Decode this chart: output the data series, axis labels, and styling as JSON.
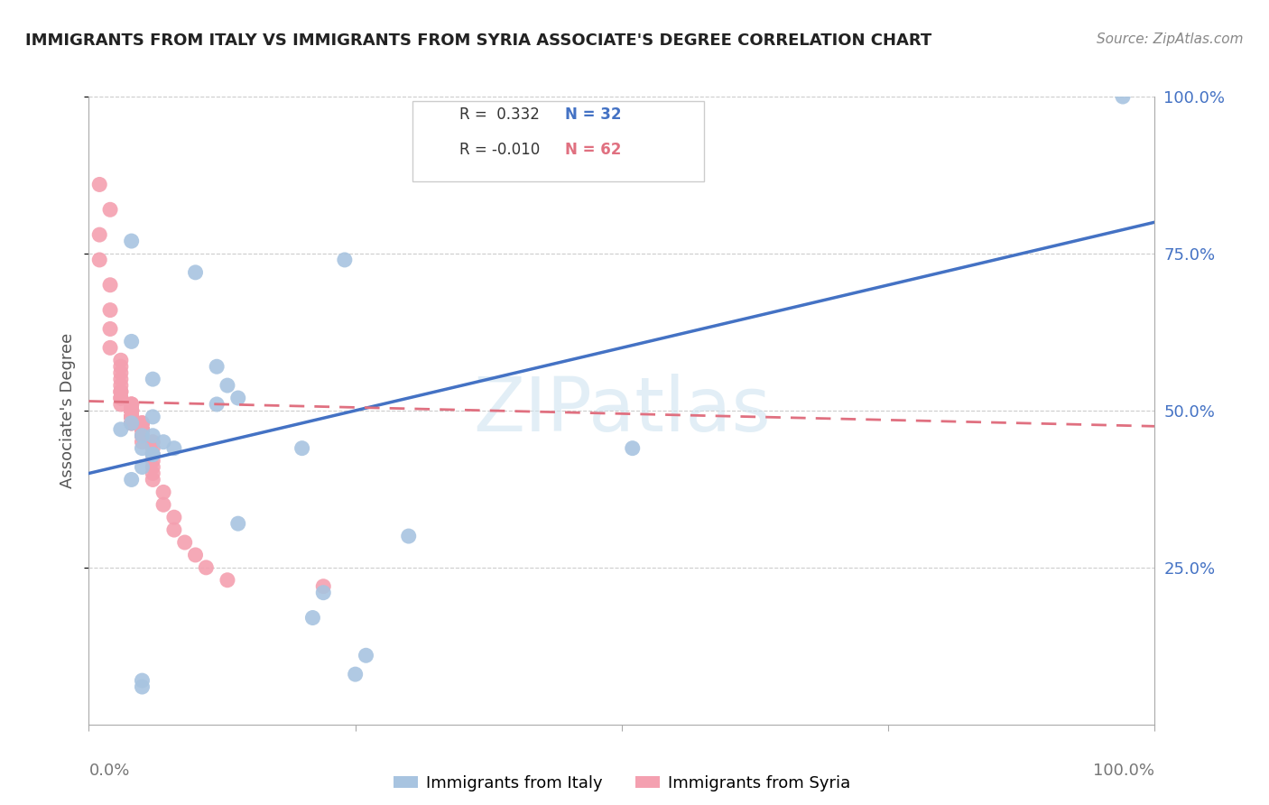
{
  "title": "IMMIGRANTS FROM ITALY VS IMMIGRANTS FROM SYRIA ASSOCIATE'S DEGREE CORRELATION CHART",
  "source": "Source: ZipAtlas.com",
  "ylabel": "Associate's Degree",
  "ytick_labels": [
    "100.0%",
    "75.0%",
    "50.0%",
    "25.0%"
  ],
  "ytick_values": [
    1.0,
    0.75,
    0.5,
    0.25
  ],
  "italy_r": 0.332,
  "italy_n": 32,
  "syria_r": -0.01,
  "syria_n": 62,
  "italy_color": "#a8c4e0",
  "syria_color": "#f4a0b0",
  "italy_line_color": "#4472C4",
  "syria_line_color": "#e07080",
  "watermark": "ZIPatlas",
  "background_color": "#ffffff",
  "xlim": [
    0,
    1
  ],
  "ylim": [
    0,
    1
  ],
  "italy_scatter_x": [
    0.04,
    0.1,
    0.24,
    0.04,
    0.12,
    0.06,
    0.13,
    0.14,
    0.06,
    0.04,
    0.03,
    0.05,
    0.06,
    0.07,
    0.05,
    0.08,
    0.06,
    0.05,
    0.04,
    0.12,
    0.2,
    0.51,
    0.14,
    0.21,
    0.22,
    0.26,
    0.25,
    0.3,
    0.97,
    0.06,
    0.05,
    0.05
  ],
  "italy_scatter_y": [
    0.77,
    0.72,
    0.74,
    0.61,
    0.57,
    0.55,
    0.54,
    0.52,
    0.49,
    0.48,
    0.47,
    0.46,
    0.46,
    0.45,
    0.44,
    0.44,
    0.43,
    0.41,
    0.39,
    0.51,
    0.44,
    0.44,
    0.32,
    0.17,
    0.21,
    0.11,
    0.08,
    0.3,
    1.0,
    0.43,
    0.07,
    0.06
  ],
  "syria_scatter_x": [
    0.01,
    0.02,
    0.01,
    0.01,
    0.02,
    0.02,
    0.02,
    0.02,
    0.03,
    0.03,
    0.03,
    0.03,
    0.03,
    0.03,
    0.03,
    0.03,
    0.03,
    0.03,
    0.04,
    0.04,
    0.04,
    0.04,
    0.04,
    0.04,
    0.04,
    0.04,
    0.04,
    0.04,
    0.04,
    0.04,
    0.04,
    0.04,
    0.04,
    0.04,
    0.04,
    0.04,
    0.05,
    0.05,
    0.05,
    0.05,
    0.05,
    0.05,
    0.05,
    0.05,
    0.05,
    0.05,
    0.06,
    0.06,
    0.06,
    0.06,
    0.06,
    0.06,
    0.06,
    0.07,
    0.07,
    0.08,
    0.08,
    0.09,
    0.1,
    0.11,
    0.13,
    0.22
  ],
  "syria_scatter_y": [
    0.86,
    0.82,
    0.78,
    0.74,
    0.7,
    0.66,
    0.63,
    0.6,
    0.58,
    0.57,
    0.56,
    0.55,
    0.54,
    0.53,
    0.53,
    0.52,
    0.52,
    0.51,
    0.51,
    0.51,
    0.51,
    0.5,
    0.5,
    0.5,
    0.5,
    0.5,
    0.5,
    0.49,
    0.49,
    0.49,
    0.49,
    0.49,
    0.49,
    0.48,
    0.48,
    0.48,
    0.48,
    0.48,
    0.48,
    0.47,
    0.47,
    0.47,
    0.47,
    0.46,
    0.46,
    0.45,
    0.45,
    0.44,
    0.43,
    0.42,
    0.41,
    0.4,
    0.39,
    0.37,
    0.35,
    0.33,
    0.31,
    0.29,
    0.27,
    0.25,
    0.23,
    0.22
  ],
  "italy_line_x0": 0.0,
  "italy_line_y0": 0.4,
  "italy_line_x1": 1.0,
  "italy_line_y1": 0.8,
  "syria_line_x0": 0.0,
  "syria_line_y0": 0.515,
  "syria_line_x1": 1.0,
  "syria_line_y1": 0.475
}
